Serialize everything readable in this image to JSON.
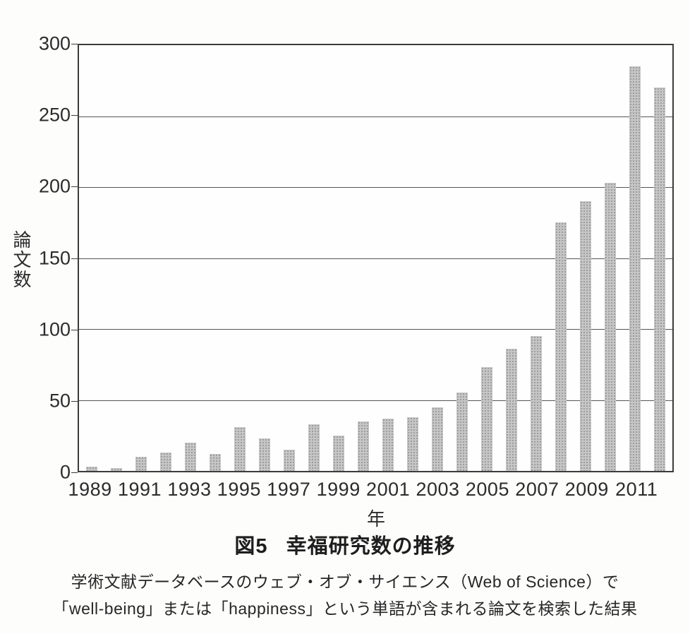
{
  "figure": {
    "fig_label": "図5",
    "title_text": "幸福研究数の推移",
    "caption_line1": "学術文献データベースのウェブ・オブ・サイエンス（Web of Science）で",
    "caption_line2": "「well-being」または「happiness」という単語が含まれる論文を検索した結果"
  },
  "chart_data": {
    "type": "bar",
    "title": "図5 幸福研究数の推移",
    "xlabel": "年",
    "ylabel": "論文数",
    "categories": [
      1989,
      1990,
      1991,
      1992,
      1993,
      1994,
      1995,
      1996,
      1997,
      1998,
      1999,
      2000,
      2001,
      2002,
      2003,
      2004,
      2005,
      2006,
      2007,
      2008,
      2009,
      2010,
      2011,
      2012
    ],
    "values": [
      3,
      2,
      10,
      13,
      20,
      12,
      31,
      23,
      15,
      33,
      25,
      35,
      37,
      38,
      45,
      55,
      73,
      86,
      95,
      175,
      190,
      203,
      285,
      270
    ],
    "ylim": [
      0,
      300
    ],
    "yticks": [
      0,
      50,
      100,
      150,
      200,
      250,
      300
    ],
    "xtick_labels": [
      "1989",
      "1991",
      "1993",
      "1995",
      "1997",
      "1999",
      "2001",
      "2003",
      "2005",
      "2007",
      "2009",
      "2011"
    ],
    "xtick_every": 2,
    "grid": "horizontal",
    "legend": "none",
    "bar_color": "#b5b5b5",
    "gridline_color": "#555555"
  }
}
